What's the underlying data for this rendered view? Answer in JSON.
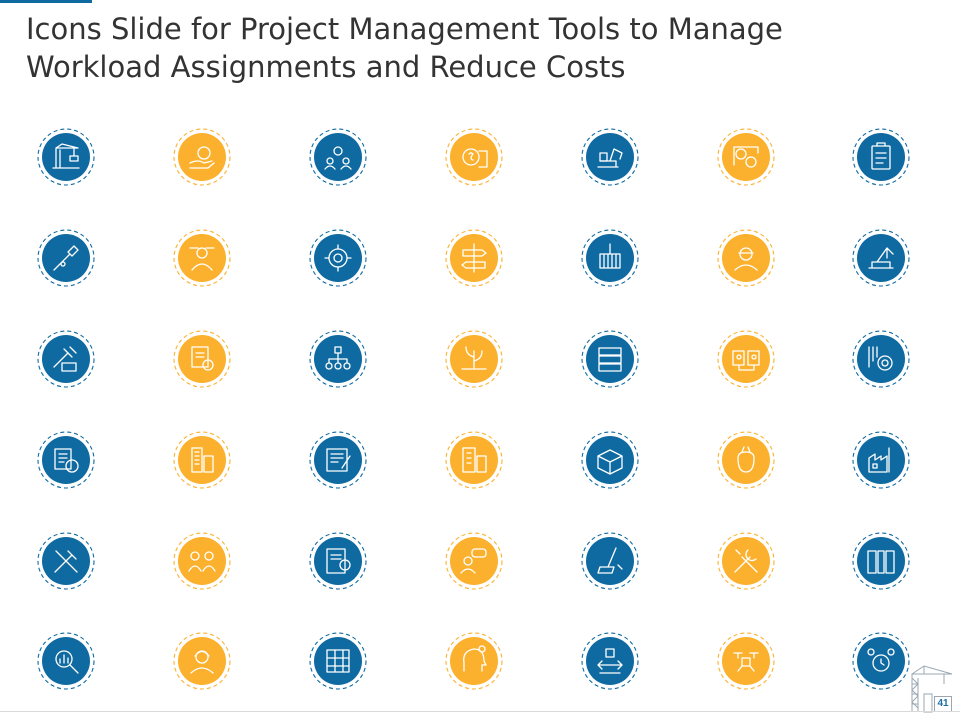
{
  "slide": {
    "title": "Icons Slide for Project Management Tools to Manage Workload Assignments and Reduce Costs",
    "page_number": "41"
  },
  "colors": {
    "blue": "#0f6aa1",
    "yellow": "#fbb12e",
    "title_text": "#333333",
    "page_number": "#1c6ea4"
  },
  "icons": [
    [
      {
        "name": "crane-icon",
        "color": "blue"
      },
      {
        "name": "money-hand-icon",
        "color": "yellow"
      },
      {
        "name": "team-settings-icon",
        "color": "blue"
      },
      {
        "name": "coin-stack-icon",
        "color": "yellow"
      },
      {
        "name": "excavator-icon",
        "color": "blue"
      },
      {
        "name": "money-exchange-icon",
        "color": "yellow"
      },
      {
        "name": "clipboard-checklist-icon",
        "color": "blue"
      }
    ],
    [
      {
        "name": "shovel-icon",
        "color": "blue"
      },
      {
        "name": "worker-blueprint-icon",
        "color": "yellow"
      },
      {
        "name": "gear-person-icon",
        "color": "blue"
      },
      {
        "name": "signpost-icon",
        "color": "yellow"
      },
      {
        "name": "crane-container-icon",
        "color": "blue"
      },
      {
        "name": "worker-helmet-icon",
        "color": "yellow"
      },
      {
        "name": "conveyor-crane-icon",
        "color": "blue"
      }
    ],
    [
      {
        "name": "hammer-bricks-icon",
        "color": "blue"
      },
      {
        "name": "gear-document-icon",
        "color": "yellow"
      },
      {
        "name": "organization-chart-icon",
        "color": "blue"
      },
      {
        "name": "plant-growth-icon",
        "color": "yellow"
      },
      {
        "name": "server-stack-icon",
        "color": "blue"
      },
      {
        "name": "profile-cards-icon",
        "color": "yellow"
      },
      {
        "name": "tools-gear-icon",
        "color": "blue"
      }
    ],
    [
      {
        "name": "report-gear-icon",
        "color": "blue"
      },
      {
        "name": "buildings-icon",
        "color": "yellow"
      },
      {
        "name": "blueprint-pencil-icon",
        "color": "blue"
      },
      {
        "name": "office-building-icon",
        "color": "yellow"
      },
      {
        "name": "open-box-icon",
        "color": "blue"
      },
      {
        "name": "money-bag-tag-icon",
        "color": "yellow"
      },
      {
        "name": "factory-icon",
        "color": "blue"
      }
    ],
    [
      {
        "name": "crossed-tools-icon",
        "color": "blue"
      },
      {
        "name": "team-meeting-icon",
        "color": "yellow"
      },
      {
        "name": "settings-document-icon",
        "color": "blue"
      },
      {
        "name": "discussion-people-icon",
        "color": "yellow"
      },
      {
        "name": "cleaning-broom-icon",
        "color": "blue"
      },
      {
        "name": "hammer-wrench-icon",
        "color": "yellow"
      },
      {
        "name": "toolkit-icon",
        "color": "blue"
      }
    ],
    [
      {
        "name": "magnifier-chart-icon",
        "color": "blue"
      },
      {
        "name": "engineer-icon",
        "color": "yellow"
      },
      {
        "name": "building-plan-icon",
        "color": "blue"
      },
      {
        "name": "idea-head-icon",
        "color": "yellow"
      },
      {
        "name": "money-flow-icon",
        "color": "blue"
      },
      {
        "name": "drone-delivery-icon",
        "color": "yellow"
      },
      {
        "name": "team-time-icon",
        "color": "blue"
      }
    ]
  ]
}
